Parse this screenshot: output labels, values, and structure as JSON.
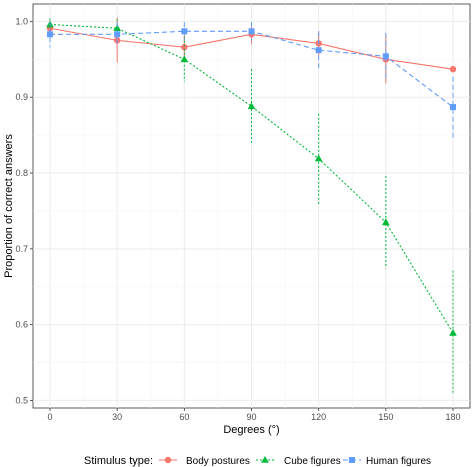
{
  "chart_data": {
    "type": "line",
    "xlabel": "Degrees (°)",
    "ylabel": "Proportion of correct answers",
    "x": [
      0,
      30,
      60,
      90,
      120,
      150,
      180
    ],
    "xticks": [
      "0",
      "30",
      "60",
      "90",
      "120",
      "150",
      "180"
    ],
    "yticks": [
      "0.5",
      "0.6",
      "0.7",
      "0.8",
      "0.9",
      "1.0"
    ],
    "xlim": [
      0,
      180
    ],
    "ylim": [
      0.49,
      1.023
    ],
    "grid": true,
    "legend": {
      "title": "Stimulus type:",
      "placement": "bottom"
    },
    "series": [
      {
        "name": "Body postures",
        "color": "#F8766D",
        "marker": "circle",
        "line_style": "solid",
        "values": [
          0.991,
          0.975,
          0.966,
          0.983,
          0.971,
          0.95,
          0.937
        ],
        "error_low": [
          0.979,
          0.946,
          0.949,
          0.97,
          0.955,
          0.918,
          0.937
        ],
        "error_high": [
          1.002,
          1.005,
          0.984,
          0.996,
          0.987,
          0.981,
          0.937
        ]
      },
      {
        "name": "Cube figures",
        "color": "#00BA38",
        "marker": "triangle",
        "line_style": "dotted",
        "values": [
          0.996,
          0.991,
          0.95,
          0.888,
          0.819,
          0.735,
          0.589
        ],
        "error_low": [
          0.988,
          0.979,
          0.921,
          0.84,
          0.759,
          0.674,
          0.508
        ],
        "error_high": [
          1.004,
          1.003,
          0.98,
          0.937,
          0.878,
          0.796,
          0.671
        ]
      },
      {
        "name": "Human figures",
        "color": "#619CFF",
        "marker": "square",
        "line_style": "dashed",
        "values": [
          0.983,
          0.983,
          0.987,
          0.987,
          0.962,
          0.954,
          0.887
        ],
        "error_low": [
          0.966,
          0.967,
          0.975,
          0.975,
          0.938,
          0.923,
          0.845
        ],
        "error_high": [
          1.0,
          0.999,
          0.999,
          0.999,
          0.987,
          0.985,
          0.927
        ]
      }
    ]
  }
}
